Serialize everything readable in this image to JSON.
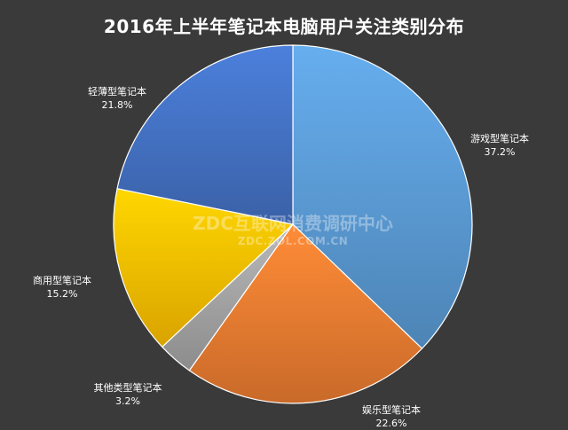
{
  "chart_data": {
    "type": "pie",
    "title": "2016年上半年笔记本电脑用户关注类别分布",
    "start_angle_deg": 0,
    "direction": "clockwise",
    "slices": [
      {
        "name": "游戏型笔记本",
        "value": 37.2,
        "label": "37.2%",
        "color": "#5b9bd5"
      },
      {
        "name": "娱乐型笔记本",
        "value": 22.6,
        "label": "22.6%",
        "color": "#ed7d31"
      },
      {
        "name": "其他类型笔记本",
        "value": 3.2,
        "label": "3.2%",
        "color": "#a5a5a5"
      },
      {
        "name": "商用型笔记本",
        "value": 15.2,
        "label": "15.2%",
        "color": "#ffc000"
      },
      {
        "name": "轻薄型笔记本",
        "value": 21.8,
        "label": "21.8%",
        "color": "#4472c4"
      }
    ]
  },
  "watermark": {
    "main": "ZDC互联网消费调研中心",
    "sub": "ZDC.ZOL.COM.CN"
  }
}
